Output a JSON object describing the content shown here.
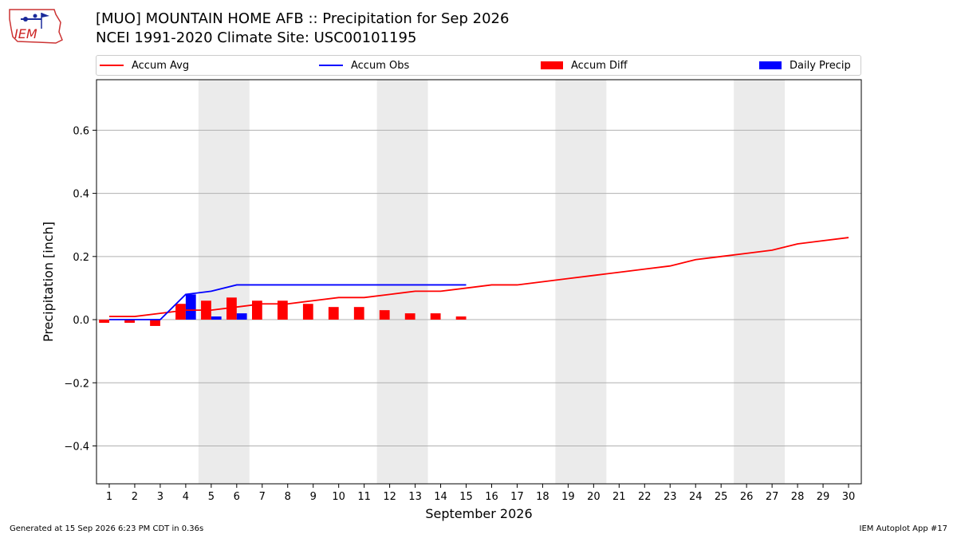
{
  "header": {
    "title_line1": "[MUO] MOUNTAIN HOME AFB :: Precipitation for Sep 2026",
    "title_line2": "NCEI 1991-2020 Climate Site: USC00101195",
    "logo_text": "IEM"
  },
  "legend": [
    {
      "label": "Accum Avg",
      "kind": "line",
      "color": "#ff0000"
    },
    {
      "label": "Accum Obs",
      "kind": "line",
      "color": "#0000ff"
    },
    {
      "label": "Accum Diff",
      "kind": "patch",
      "color": "#ff0000"
    },
    {
      "label": "Daily Precip",
      "kind": "patch",
      "color": "#0000ff"
    }
  ],
  "footer": {
    "generated": "Generated at 15 Sep 2026 6:23 PM CDT in 0.36s",
    "app": "IEM Autoplot App #17"
  },
  "chart_data": {
    "type": "bar",
    "xlabel": "September 2026",
    "ylabel": "Precipitation [inch]",
    "xlim": [
      0.5,
      30.5
    ],
    "ylim": [
      -0.52,
      0.76
    ],
    "x_ticks": [
      1,
      2,
      3,
      4,
      5,
      6,
      7,
      8,
      9,
      10,
      11,
      12,
      13,
      14,
      15,
      16,
      17,
      18,
      19,
      20,
      21,
      22,
      23,
      24,
      25,
      26,
      27,
      28,
      29,
      30
    ],
    "y_ticks": [
      {
        "value": -0.4,
        "label": "−0.4"
      },
      {
        "value": -0.2,
        "label": "−0.2"
      },
      {
        "value": 0.0,
        "label": "0.0"
      },
      {
        "value": 0.2,
        "label": "0.2"
      },
      {
        "value": 0.4,
        "label": "0.4"
      },
      {
        "value": 0.6,
        "label": "0.6"
      }
    ],
    "grid": true,
    "weekend_shading": [
      [
        4.5,
        6.5
      ],
      [
        11.5,
        13.5
      ],
      [
        18.5,
        20.5
      ],
      [
        25.5,
        27.5
      ]
    ],
    "colors": {
      "avg": "#ff0000",
      "obs": "#0000ff",
      "diff": "#ff0000",
      "daily": "#0000ff",
      "shade": "#ebebeb",
      "grid": "#b0b0b0"
    },
    "series": [
      {
        "name": "Accum Avg",
        "kind": "line",
        "x": [
          1,
          2,
          3,
          4,
          5,
          6,
          7,
          8,
          9,
          10,
          11,
          12,
          13,
          14,
          15,
          16,
          17,
          18,
          19,
          20,
          21,
          22,
          23,
          24,
          25,
          26,
          27,
          28,
          29,
          30
        ],
        "values": [
          0.01,
          0.01,
          0.02,
          0.03,
          0.03,
          0.04,
          0.05,
          0.05,
          0.06,
          0.07,
          0.07,
          0.08,
          0.09,
          0.09,
          0.1,
          0.11,
          0.11,
          0.12,
          0.13,
          0.14,
          0.15,
          0.16,
          0.17,
          0.19,
          0.2,
          0.21,
          0.22,
          0.24,
          0.25,
          0.26
        ]
      },
      {
        "name": "Accum Obs",
        "kind": "line",
        "x": [
          1,
          2,
          3,
          4,
          5,
          6,
          7,
          8,
          9,
          10,
          11,
          12,
          13,
          14,
          15
        ],
        "values": [
          0.0,
          0.0,
          0.0,
          0.08,
          0.09,
          0.11,
          0.11,
          0.11,
          0.11,
          0.11,
          0.11,
          0.11,
          0.11,
          0.11,
          0.11
        ]
      },
      {
        "name": "Accum Diff",
        "kind": "bar",
        "x": [
          1,
          2,
          3,
          4,
          5,
          6,
          7,
          8,
          9,
          10,
          11,
          12,
          13,
          14,
          15
        ],
        "values": [
          -0.01,
          -0.01,
          -0.02,
          0.05,
          0.06,
          0.07,
          0.06,
          0.06,
          0.05,
          0.04,
          0.04,
          0.03,
          0.02,
          0.02,
          0.01
        ]
      },
      {
        "name": "Daily Precip",
        "kind": "bar",
        "x": [
          4,
          5,
          6
        ],
        "values": [
          0.08,
          0.01,
          0.02
        ]
      }
    ]
  }
}
